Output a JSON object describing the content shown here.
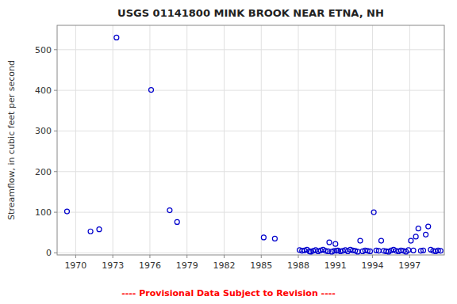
{
  "chart_data": {
    "type": "scatter",
    "title": "USGS 01141800 MINK BROOK NEAR ETNA, NH",
    "ylabel": "Streamflow, in cubic feet per second",
    "annotations": [
      {
        "text": "---- Provisional Data Subject to Revision ----",
        "color": "#ff0000"
      }
    ],
    "color": "#0000cc",
    "marker": "circle",
    "grid": true,
    "xlim": [
      1968.5,
      1999.8
    ],
    "ylim": [
      -5,
      560
    ],
    "xticks": [
      1970,
      1973,
      1976,
      1979,
      1982,
      1985,
      1988,
      1991,
      1994,
      1997
    ],
    "yticks": [
      0,
      100,
      200,
      300,
      400,
      500
    ],
    "x": [
      1969.3,
      1971.2,
      1971.9,
      1973.3,
      1976.1,
      1977.6,
      1978.2,
      1985.2,
      1986.1,
      1988.1,
      1988.3,
      1988.5,
      1988.7,
      1988.9,
      1989.0,
      1989.2,
      1989.4,
      1989.6,
      1989.8,
      1990.0,
      1990.2,
      1990.4,
      1990.5,
      1990.7,
      1990.9,
      1991.0,
      1991.1,
      1991.2,
      1991.4,
      1991.6,
      1991.8,
      1992.0,
      1992.2,
      1992.4,
      1992.6,
      1992.8,
      1993.0,
      1993.2,
      1993.4,
      1993.6,
      1993.8,
      1994.1,
      1994.3,
      1994.5,
      1994.7,
      1994.9,
      1995.1,
      1995.3,
      1995.5,
      1995.7,
      1995.9,
      1996.1,
      1996.3,
      1996.5,
      1996.7,
      1996.9,
      1997.1,
      1997.3,
      1997.5,
      1997.7,
      1997.9,
      1998.1,
      1998.3,
      1998.5,
      1998.7,
      1998.9,
      1999.1,
      1999.3,
      1999.5
    ],
    "values": [
      102,
      53,
      58,
      530,
      401,
      105,
      76,
      38,
      35,
      7,
      5,
      6,
      8,
      4,
      3,
      5,
      7,
      4,
      6,
      8,
      5,
      4,
      26,
      3,
      5,
      22,
      5,
      6,
      4,
      5,
      7,
      4,
      8,
      6,
      5,
      3,
      30,
      4,
      6,
      5,
      4,
      100,
      6,
      5,
      30,
      5,
      4,
      3,
      6,
      8,
      5,
      4,
      6,
      5,
      3,
      7,
      30,
      6,
      40,
      60,
      5,
      6,
      45,
      65,
      8,
      5,
      4,
      6,
      5
    ]
  }
}
